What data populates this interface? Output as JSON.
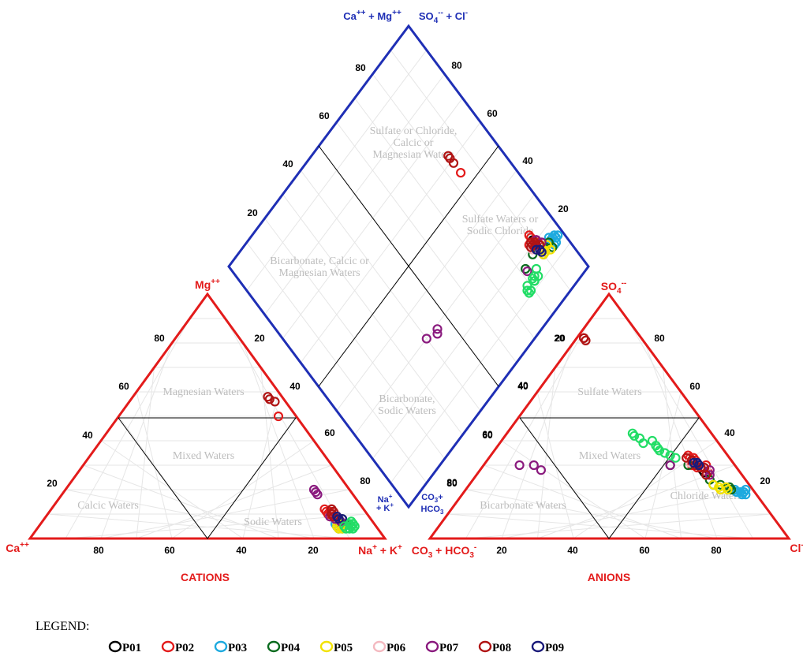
{
  "chart_data": {
    "type": "scatter",
    "subtype": "piper-trilinear-diagram",
    "panels": {
      "cations": {
        "title": "CATIONS",
        "apex_top": "Mg++",
        "vertex_left": "Ca++",
        "vertex_right": "Na+ + K+",
        "bottom_ticks": [
          "80",
          "60",
          "40",
          "20"
        ],
        "left_ticks": [
          "20",
          "40",
          "60",
          "80"
        ],
        "right_ticks": [
          "20",
          "40",
          "60",
          "80"
        ],
        "regions": [
          "Magnesian Waters",
          "Mixed Waters",
          "Calcic Waters",
          "Sodic Waters"
        ]
      },
      "anions": {
        "title": "ANIONS",
        "apex_top": "SO4--",
        "vertex_left": "CO3= + HCO3-",
        "vertex_right": "Cl-",
        "bottom_ticks": [
          "20",
          "40",
          "60",
          "80"
        ],
        "left_ticks": [
          "20",
          "40",
          "60",
          "80"
        ],
        "right_ticks": [
          "20",
          "40",
          "60",
          "80"
        ],
        "regions": [
          "Sulfate Waters",
          "Mixed Waters",
          "Bicarbonate Waters",
          "Chloride Waters"
        ]
      },
      "diamond": {
        "label_top_left": "Ca++ + Mg++",
        "label_top_right": "SO4-- + Cl-",
        "label_bottom_left": "Na+ + K+",
        "label_bottom_right": "CO3= + HCO3-",
        "upper_left_ticks": [
          "80",
          "60",
          "40",
          "20"
        ],
        "upper_right_ticks": [
          "80",
          "60",
          "40",
          "20"
        ],
        "lower_left_ticks": [
          "20",
          "40",
          "60",
          "80"
        ],
        "lower_right_ticks": [
          "20",
          "40",
          "60",
          "80"
        ],
        "regions": [
          "Sulfate or Chloride, Calcic or Magnesian Waters",
          "Bicarbonate, Calcic or Magnesian Waters",
          "Sulfate Waters or Sodic Chloride",
          "Bicarbonate, Sodic Waters"
        ]
      }
    },
    "legend": {
      "title": "LEGEND:",
      "placement": "bottom-left",
      "entries": [
        {
          "name": "P01",
          "color": "#000000"
        },
        {
          "name": "P02",
          "color": "#e31b1b"
        },
        {
          "name": "P03",
          "color": "#1eaadf"
        },
        {
          "name": "P04",
          "color": "#0a6b1e"
        },
        {
          "name": "P05",
          "color": "#f2e200"
        },
        {
          "name": "P06",
          "color": "#f4b9c0"
        },
        {
          "name": "P07",
          "color": "#8a1a7e"
        },
        {
          "name": "P08",
          "color": "#b01414"
        },
        {
          "name": "P09",
          "color": "#1a1a7a"
        },
        {
          "name": "",
          "color": "#22dd66"
        }
      ]
    },
    "series": [
      {
        "name": "P01",
        "samples": [
          [
            8,
            82,
            60,
            30
          ],
          [
            9,
            80,
            62,
            28
          ],
          [
            10,
            79,
            61,
            29
          ],
          [
            7,
            83,
            59,
            31
          ],
          [
            9,
            81,
            63,
            27
          ]
        ]
      },
      {
        "name": "P02",
        "samples": [
          [
            50,
            45,
            2,
            82
          ],
          [
            8,
            82,
            62,
            30
          ],
          [
            9,
            81,
            63,
            28
          ],
          [
            10,
            80,
            64,
            27
          ],
          [
            12,
            77,
            58,
            32
          ],
          [
            11,
            78,
            57,
            33
          ],
          [
            10,
            79,
            60,
            29
          ],
          [
            9,
            80,
            64,
            27
          ],
          [
            11,
            79,
            58,
            30
          ],
          [
            8,
            83,
            59,
            31
          ],
          [
            10,
            81,
            55,
            34
          ],
          [
            12,
            79,
            56,
            33
          ]
        ]
      },
      {
        "name": "P03",
        "samples": [
          [
            5,
            84,
            75,
            20
          ],
          [
            6,
            83,
            76,
            19
          ],
          [
            5,
            86,
            78,
            18
          ],
          [
            6,
            84,
            77,
            19
          ],
          [
            5,
            85,
            79,
            18
          ],
          [
            4,
            86,
            76,
            19
          ],
          [
            5,
            84,
            78,
            19
          ],
          [
            4,
            85,
            78,
            20
          ]
        ]
      },
      {
        "name": "P04",
        "samples": [
          [
            7,
            83,
            52,
            30
          ],
          [
            8,
            82,
            57,
            30
          ],
          [
            6,
            85,
            68,
            22
          ],
          [
            8,
            84,
            70,
            22
          ],
          [
            7,
            83,
            66,
            24
          ],
          [
            5,
            84,
            74,
            20
          ],
          [
            6,
            86,
            73,
            21
          ]
        ]
      },
      {
        "name": "P05",
        "samples": [
          [
            5,
            85,
            71,
            20
          ],
          [
            4,
            86,
            72,
            21
          ],
          [
            5,
            84,
            73,
            20
          ],
          [
            4,
            85,
            68,
            22
          ],
          [
            6,
            84,
            70,
            21
          ]
        ]
      },
      {
        "name": "P06",
        "samples": [
          [
            9,
            80,
            60,
            30
          ],
          [
            10,
            81,
            57,
            31
          ],
          [
            8,
            82,
            63,
            28
          ],
          [
            9,
            82,
            61,
            29
          ]
        ]
      },
      {
        "name": "P07",
        "samples": [
          [
            20,
            70,
            10,
            30
          ],
          [
            18,
            72,
            14,
            30
          ],
          [
            19,
            71,
            17,
            28
          ],
          [
            9,
            80,
            65,
            26
          ],
          [
            8,
            82,
            62,
            29
          ],
          [
            7,
            84,
            52,
            30
          ],
          [
            9,
            82,
            64,
            28
          ]
        ]
      },
      {
        "name": "P08",
        "samples": [
          [
            58,
            38,
            2,
            82
          ],
          [
            57,
            39,
            3,
            81
          ],
          [
            56,
            41,
            2,
            82
          ],
          [
            10,
            80,
            64,
            26
          ],
          [
            9,
            81,
            61,
            29
          ],
          [
            11,
            80,
            59,
            30
          ],
          [
            10,
            80,
            55,
            33
          ],
          [
            12,
            79,
            57,
            32
          ],
          [
            9,
            82,
            62,
            29
          ]
        ]
      },
      {
        "name": "P09",
        "samples": [
          [
            8,
            83,
            59,
            31
          ],
          [
            8,
            84,
            60,
            30
          ],
          [
            9,
            82,
            58,
            31
          ]
        ]
      },
      {
        "name": "",
        "samples": [
          [
            5,
            88,
            35,
            43
          ],
          [
            4,
            89,
            38,
            41
          ],
          [
            6,
            88,
            46,
            36
          ],
          [
            5,
            86,
            52,
            33
          ],
          [
            4,
            87,
            44,
            38
          ],
          [
            6,
            88,
            45,
            37
          ],
          [
            5,
            89,
            36,
            42
          ],
          [
            6,
            87,
            48,
            35
          ],
          [
            4,
            88,
            42,
            40
          ],
          [
            7,
            87,
            40,
            39
          ],
          [
            5,
            88,
            50,
            34
          ]
        ]
      }
    ]
  }
}
